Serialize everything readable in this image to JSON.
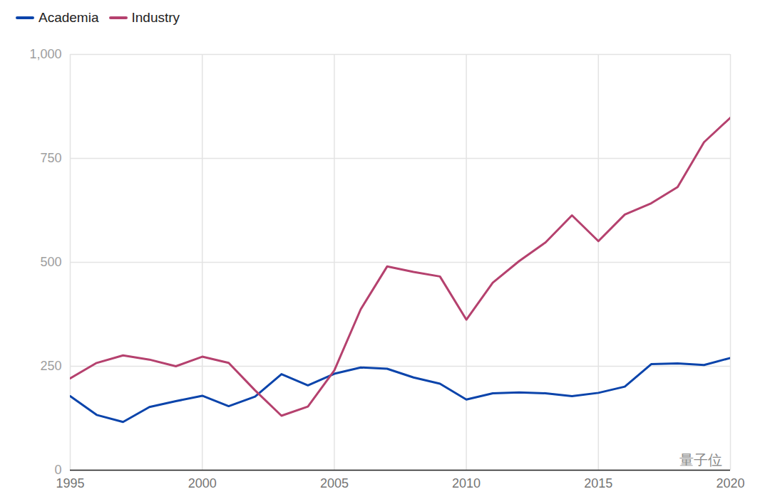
{
  "chart_data": {
    "type": "line",
    "x": [
      1995,
      1996,
      1997,
      1998,
      1999,
      2000,
      2001,
      2002,
      2003,
      2004,
      2005,
      2006,
      2007,
      2008,
      2009,
      2010,
      2011,
      2012,
      2013,
      2014,
      2015,
      2016,
      2017,
      2018,
      2019,
      2020
    ],
    "series": [
      {
        "name": "Academia",
        "color": "#0b44ab",
        "values": [
          178,
          133,
          116,
          152,
          166,
          179,
          154,
          177,
          231,
          204,
          232,
          247,
          244,
          223,
          208,
          170,
          185,
          187,
          185,
          178,
          186,
          201,
          255,
          257,
          253,
          270
        ]
      },
      {
        "name": "Industry",
        "color": "#b5416e",
        "values": [
          221,
          258,
          276,
          266,
          250,
          273,
          258,
          192,
          131,
          153,
          240,
          387,
          490,
          477,
          466,
          362,
          451,
          503,
          548,
          613,
          551,
          615,
          642,
          681,
          789,
          848
        ]
      }
    ],
    "xlim": [
      1995,
      2020
    ],
    "xticks": [
      1995,
      2000,
      2005,
      2010,
      2015,
      2020
    ],
    "ylim": [
      0,
      1000
    ],
    "yticks": [
      0,
      250,
      500,
      750,
      {
        "value": 1000,
        "label": "1,000"
      }
    ],
    "grid": true,
    "legend": "top-left",
    "annotation": "量子位"
  }
}
